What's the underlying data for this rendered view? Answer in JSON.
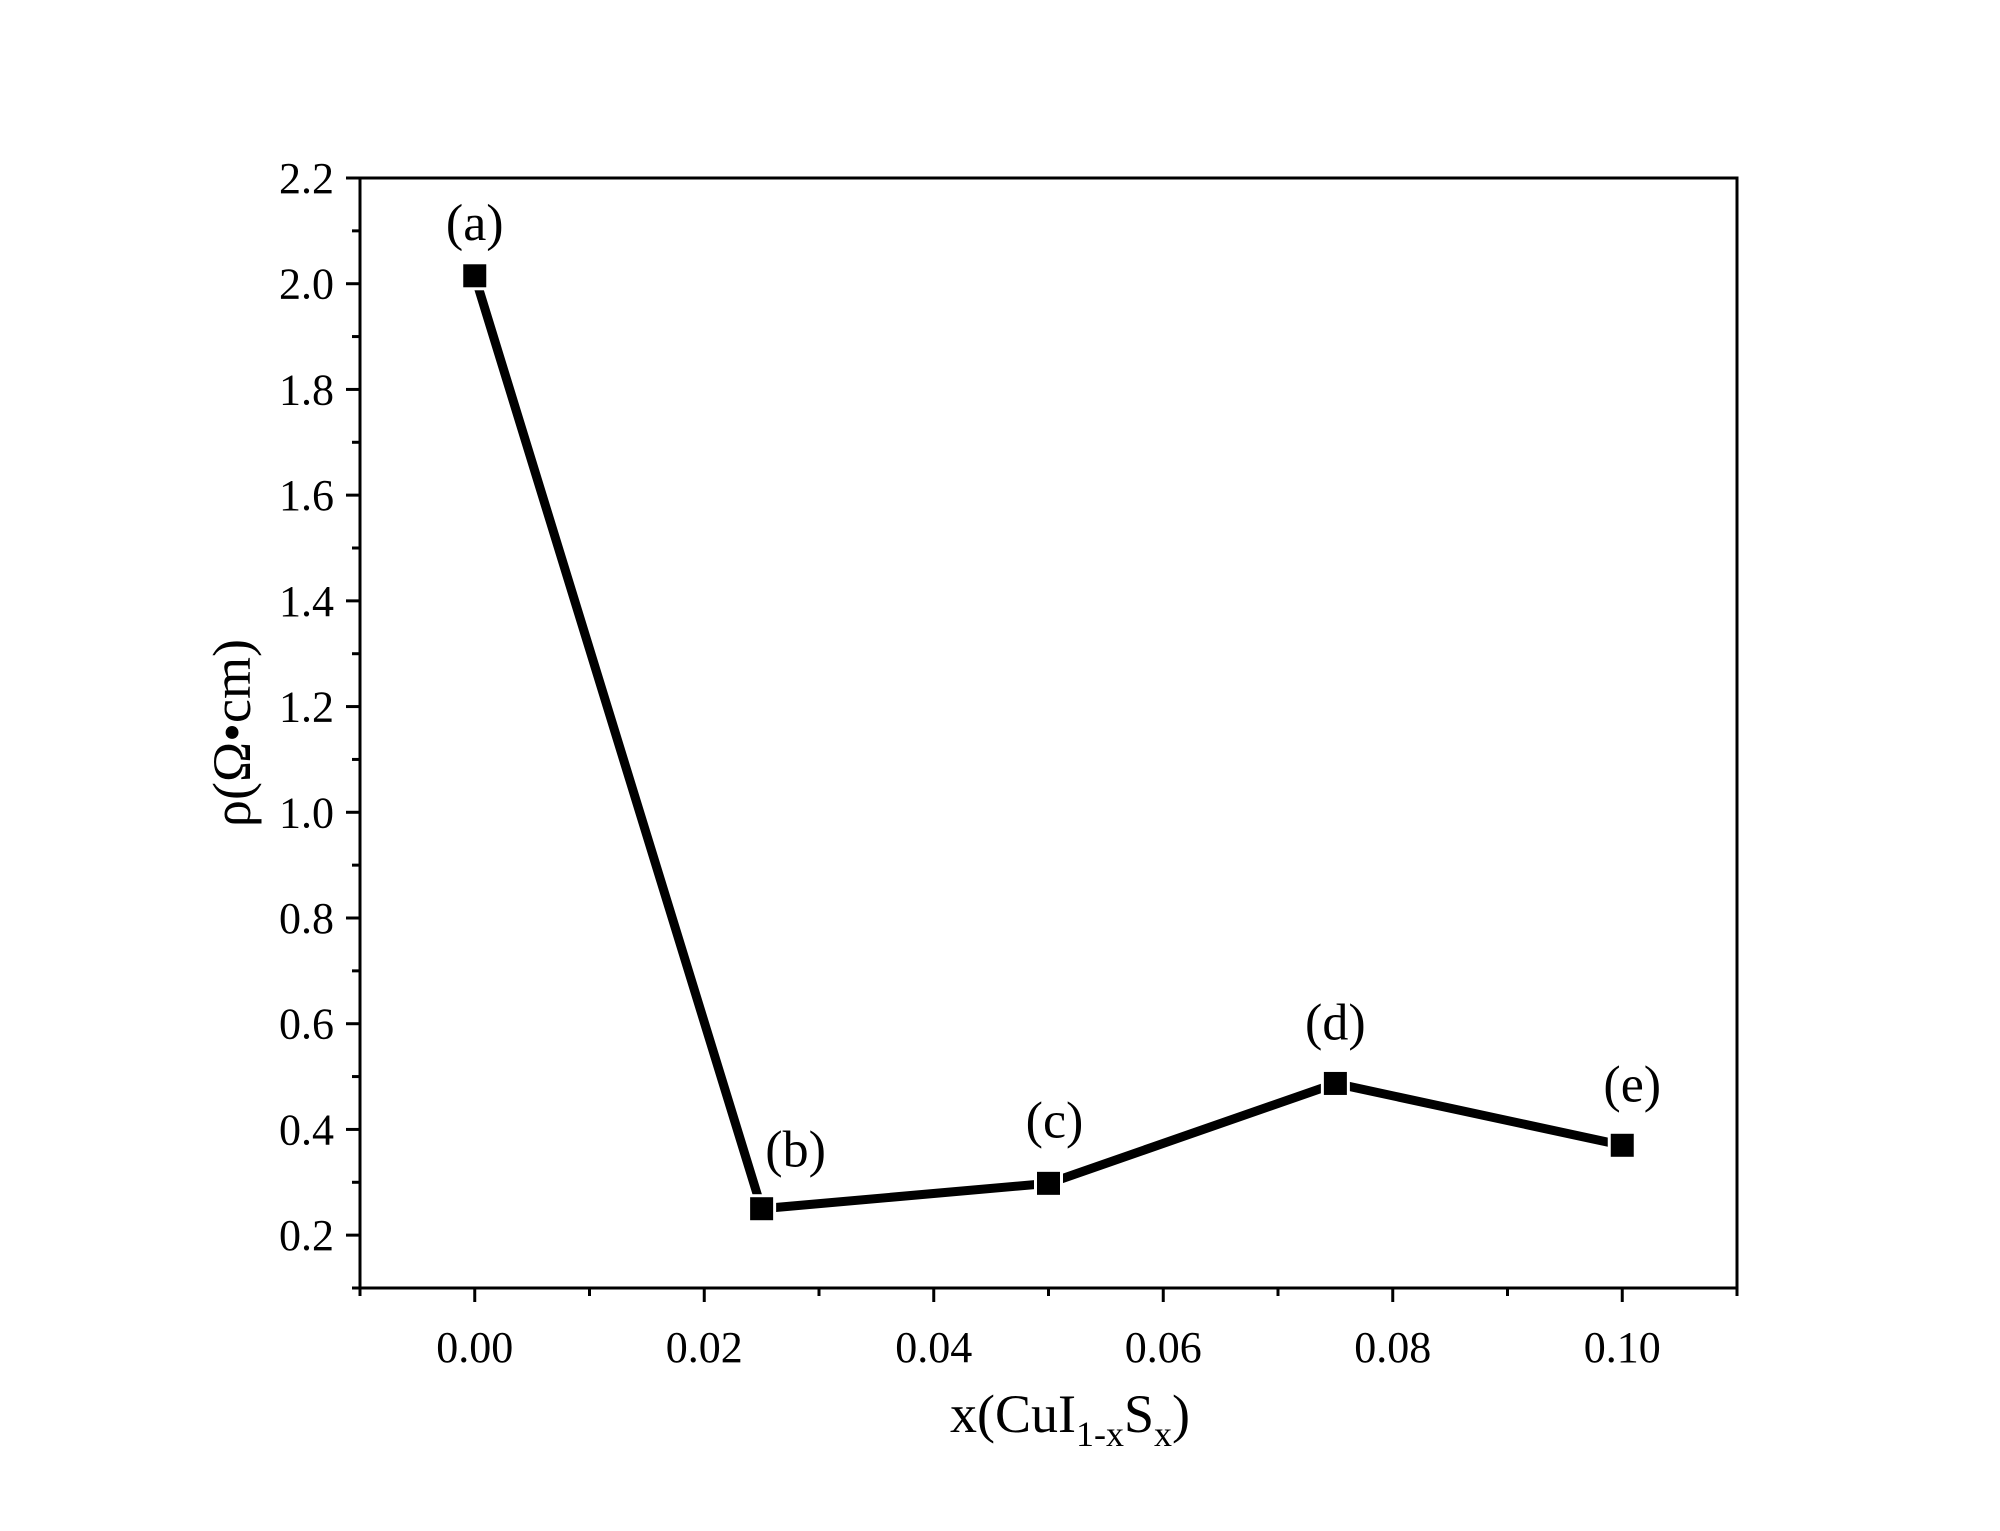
{
  "chart_data": {
    "type": "line",
    "title": "",
    "xlabel": {
      "main": "x(CuI",
      "sub1": "1-x",
      "mid": "S",
      "sub2": "x",
      "end": ")"
    },
    "ylabel": "ρ(Ω•cm)",
    "xlim": [
      -0.01,
      0.11
    ],
    "ylim": [
      0.1,
      2.2
    ],
    "x_ticks": [
      0.0,
      0.02,
      0.04,
      0.06,
      0.08,
      0.1
    ],
    "x_tick_labels": [
      "0.00",
      "0.02",
      "0.04",
      "0.06",
      "0.08",
      "0.10"
    ],
    "x_minor_ticks": [
      -0.01,
      0.01,
      0.03,
      0.05,
      0.07,
      0.09,
      0.11
    ],
    "y_ticks": [
      0.2,
      0.4,
      0.6,
      0.8,
      1.0,
      1.2,
      1.4,
      1.6,
      1.8,
      2.0,
      2.2
    ],
    "y_tick_labels": [
      "0.2",
      "0.4",
      "0.6",
      "0.8",
      "1.0",
      "1.2",
      "1.4",
      "1.6",
      "1.8",
      "2.0",
      "2.2"
    ],
    "y_minor_ticks": [
      0.1,
      0.3,
      0.5,
      0.7,
      0.9,
      1.1,
      1.3,
      1.5,
      1.7,
      1.9,
      2.1
    ],
    "grid": false,
    "series": [
      {
        "x": [
          0.0,
          0.025,
          0.05,
          0.075,
          0.1
        ],
        "values": [
          2.015,
          0.25,
          0.298,
          0.487,
          0.37
        ],
        "marker": "square",
        "color": "#000000"
      }
    ],
    "point_labels": [
      "(a)",
      "(b)",
      "(c)",
      "(d)",
      "(e)"
    ]
  }
}
